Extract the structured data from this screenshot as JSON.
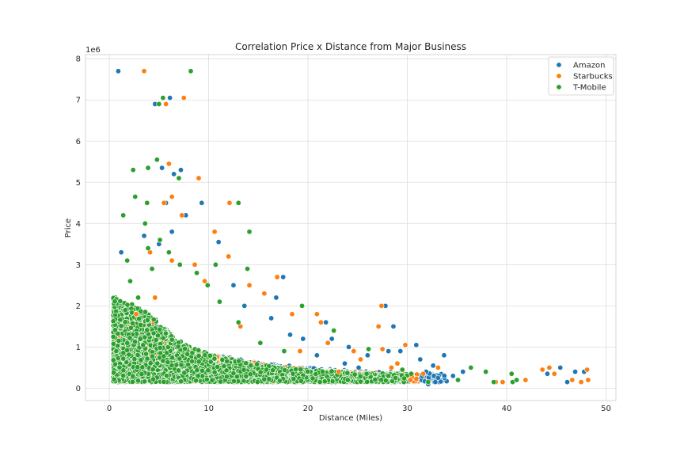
{
  "chart_data": {
    "type": "scatter",
    "title": "Correlation Price x Distance from Major Business",
    "xlabel": "Distance (Miles)",
    "ylabel": "Price",
    "y_offset_text": "1e6",
    "xlim": [
      -2.4,
      51.0
    ],
    "ylim": [
      -0.3,
      8.1
    ],
    "xticks": [
      0,
      10,
      20,
      30,
      40,
      50
    ],
    "yticks": [
      0,
      1,
      2,
      3,
      4,
      5,
      6,
      7,
      8
    ],
    "grid": true,
    "legend_position": "top-right",
    "series": [
      {
        "name": "Amazon",
        "color": "#1f77b4",
        "points": [
          [
            0.9,
            7.7
          ],
          [
            4.6,
            6.9
          ],
          [
            6.1,
            7.05
          ],
          [
            5.3,
            5.35
          ],
          [
            6.5,
            5.2
          ],
          [
            7.2,
            5.3
          ],
          [
            9.3,
            4.5
          ],
          [
            5.7,
            4.5
          ],
          [
            7.7,
            4.2
          ],
          [
            3.5,
            3.7
          ],
          [
            5.0,
            3.5
          ],
          [
            11.0,
            3.55
          ],
          [
            1.2,
            3.3
          ],
          [
            6.3,
            3.8
          ],
          [
            17.5,
            2.7
          ],
          [
            16.8,
            2.2
          ],
          [
            14.1,
            2.5
          ],
          [
            21.8,
            1.6
          ],
          [
            22.4,
            1.2
          ],
          [
            24.1,
            1.0
          ],
          [
            27.8,
            2.0
          ],
          [
            28.6,
            1.5
          ],
          [
            30.9,
            1.05
          ],
          [
            33.7,
            0.8
          ],
          [
            32.6,
            0.55
          ],
          [
            31.9,
            0.4
          ],
          [
            32.1,
            0.1
          ],
          [
            35.6,
            0.4
          ],
          [
            46.9,
            0.4
          ],
          [
            46.1,
            0.15
          ],
          [
            47.5,
            0.15
          ],
          [
            47.8,
            0.4
          ],
          [
            45.4,
            0.5
          ],
          [
            44.1,
            0.35
          ],
          [
            29.3,
            0.9
          ],
          [
            18.2,
            1.3
          ],
          [
            12.5,
            2.5
          ],
          [
            19.5,
            1.2
          ],
          [
            26.0,
            0.8
          ],
          [
            23.7,
            0.6
          ],
          [
            34.6,
            0.3
          ],
          [
            33.1,
            0.25
          ],
          [
            31.3,
            0.7
          ],
          [
            28.1,
            0.9
          ],
          [
            25.1,
            0.5
          ],
          [
            20.9,
            0.8
          ],
          [
            16.3,
            1.7
          ],
          [
            13.6,
            2.0
          ]
        ]
      },
      {
        "name": "Starbucks",
        "color": "#ff7f0e",
        "points": [
          [
            3.5,
            7.7
          ],
          [
            5.7,
            6.9
          ],
          [
            7.5,
            7.05
          ],
          [
            9.0,
            5.1
          ],
          [
            6.0,
            5.45
          ],
          [
            5.5,
            4.5
          ],
          [
            6.3,
            4.65
          ],
          [
            7.3,
            4.2
          ],
          [
            12.1,
            4.5
          ],
          [
            10.6,
            3.8
          ],
          [
            8.6,
            3.0
          ],
          [
            12.0,
            3.2
          ],
          [
            6.3,
            3.1
          ],
          [
            4.1,
            3.3
          ],
          [
            14.1,
            2.5
          ],
          [
            16.9,
            2.7
          ],
          [
            20.9,
            1.8
          ],
          [
            21.3,
            1.6
          ],
          [
            27.4,
            2.0
          ],
          [
            27.1,
            1.5
          ],
          [
            29.8,
            1.05
          ],
          [
            27.5,
            0.95
          ],
          [
            28.4,
            0.5
          ],
          [
            30.3,
            0.2
          ],
          [
            31.6,
            0.35
          ],
          [
            33.1,
            0.5
          ],
          [
            38.9,
            0.15
          ],
          [
            39.6,
            0.15
          ],
          [
            41.9,
            0.2
          ],
          [
            43.6,
            0.45
          ],
          [
            44.3,
            0.5
          ],
          [
            44.8,
            0.35
          ],
          [
            46.6,
            0.2
          ],
          [
            47.5,
            0.15
          ],
          [
            48.1,
            0.45
          ],
          [
            48.2,
            0.2
          ],
          [
            18.4,
            1.8
          ],
          [
            15.6,
            2.3
          ],
          [
            22.0,
            1.1
          ],
          [
            25.3,
            0.7
          ],
          [
            29.0,
            0.6
          ],
          [
            24.6,
            0.9
          ],
          [
            23.1,
            0.4
          ],
          [
            19.2,
            0.9
          ],
          [
            13.2,
            1.5
          ],
          [
            9.6,
            2.6
          ],
          [
            4.6,
            2.2
          ],
          [
            2.7,
            1.8
          ]
        ]
      },
      {
        "name": "T-Mobile",
        "color": "#2ca02c",
        "points": [
          [
            8.2,
            7.7
          ],
          [
            5.4,
            7.05
          ],
          [
            5.0,
            6.9
          ],
          [
            4.8,
            5.55
          ],
          [
            2.4,
            5.3
          ],
          [
            3.9,
            5.35
          ],
          [
            7.0,
            5.1
          ],
          [
            2.6,
            4.65
          ],
          [
            3.8,
            4.5
          ],
          [
            13.0,
            4.5
          ],
          [
            1.4,
            4.2
          ],
          [
            14.1,
            3.8
          ],
          [
            3.6,
            4.0
          ],
          [
            1.8,
            3.1
          ],
          [
            3.9,
            3.4
          ],
          [
            10.7,
            3.0
          ],
          [
            13.9,
            2.9
          ],
          [
            19.4,
            2.0
          ],
          [
            22.6,
            1.4
          ],
          [
            26.1,
            0.95
          ],
          [
            36.4,
            0.5
          ],
          [
            37.9,
            0.4
          ],
          [
            40.5,
            0.35
          ],
          [
            38.7,
            0.15
          ],
          [
            40.6,
            0.15
          ],
          [
            41.0,
            0.2
          ],
          [
            35.1,
            0.2
          ],
          [
            30.4,
            0.35
          ],
          [
            32.1,
            0.15
          ],
          [
            28.8,
            0.25
          ],
          [
            29.5,
            0.45
          ],
          [
            25.9,
            0.35
          ],
          [
            24.0,
            0.2
          ],
          [
            21.2,
            0.15
          ],
          [
            17.6,
            0.9
          ],
          [
            15.2,
            1.1
          ],
          [
            13.0,
            1.6
          ],
          [
            11.1,
            2.1
          ],
          [
            9.9,
            2.5
          ],
          [
            8.8,
            2.8
          ],
          [
            7.1,
            3.0
          ],
          [
            6.0,
            3.3
          ],
          [
            5.1,
            3.6
          ],
          [
            4.3,
            2.9
          ],
          [
            2.9,
            2.2
          ],
          [
            2.1,
            2.6
          ],
          [
            1.6,
            1.9
          ],
          [
            0.7,
            0.9
          ]
        ]
      }
    ],
    "dense_clusters": [
      {
        "series": "Amazon",
        "x_range": [
          0.5,
          34
        ],
        "y_base": 0.15,
        "peak": 1.5,
        "decay": 10,
        "count": 1200
      },
      {
        "series": "Starbucks",
        "x_range": [
          0.8,
          31
        ],
        "y_base": 0.15,
        "peak": 1.6,
        "decay": 9,
        "count": 1400
      },
      {
        "series": "T-Mobile",
        "x_range": [
          0.4,
          30
        ],
        "y_base": 0.15,
        "peak": 1.9,
        "decay": 8,
        "count": 2600
      }
    ]
  }
}
